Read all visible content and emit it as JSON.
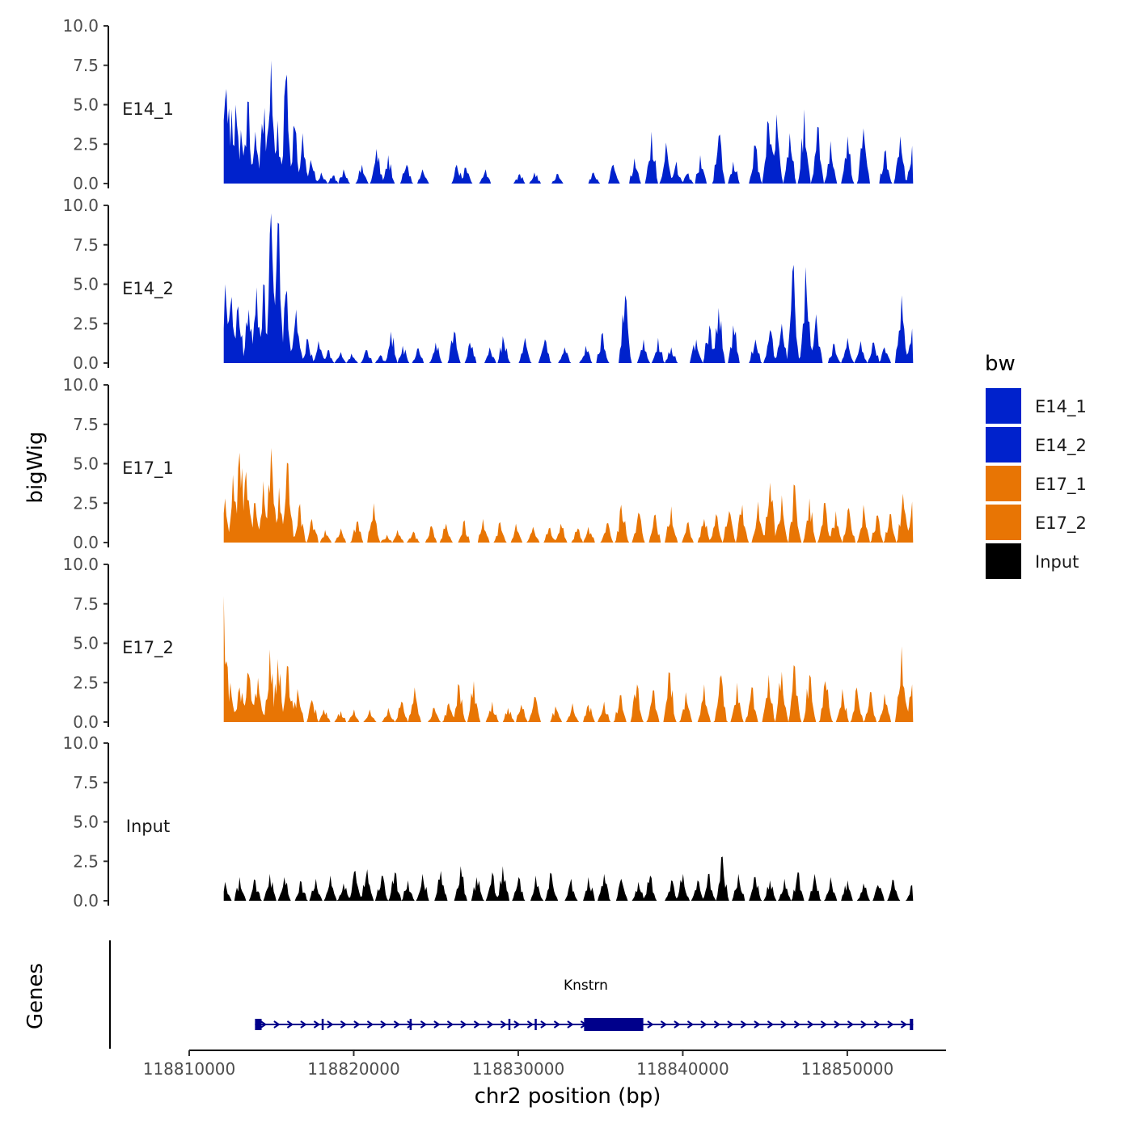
{
  "chart_data": {
    "type": "area",
    "y_axis_title": "bigWig",
    "x_axis_title": "chr2 position (bp)",
    "gene_panel_title": "Genes",
    "ylim": [
      0,
      10
    ],
    "y_ticks": [
      0,
      2.5,
      5,
      7.5,
      10
    ],
    "y_tick_labels": [
      "0.0",
      "2.5",
      "5.0",
      "7.5",
      "10.0"
    ],
    "xlim": [
      118810000,
      118856000
    ],
    "x_ticks": [
      118810000,
      118820000,
      118830000,
      118840000,
      118850000
    ],
    "x_tick_labels": [
      "118810000",
      "118820000",
      "118830000",
      "118840000",
      "118850000"
    ],
    "data_range": [
      118812100,
      118854000
    ],
    "legend": {
      "title": "bw",
      "entries": [
        {
          "label": "E14_1",
          "color": "#0022CC"
        },
        {
          "label": "E14_2",
          "color": "#0022CC"
        },
        {
          "label": "E17_1",
          "color": "#E87504"
        },
        {
          "label": "E17_2",
          "color": "#E87504"
        },
        {
          "label": "Input",
          "color": "#000000"
        }
      ]
    },
    "series": [
      {
        "name": "E14_1",
        "color": "#0022CC",
        "peaks": [
          [
            118812150,
            5.3
          ],
          [
            118812300,
            6.0
          ],
          [
            118812600,
            4.7
          ],
          [
            118812850,
            5.0
          ],
          [
            118813150,
            3.4
          ],
          [
            118813550,
            5.2
          ],
          [
            118814050,
            3.3
          ],
          [
            118814550,
            4.8
          ],
          [
            118814950,
            7.8
          ],
          [
            118815350,
            4.0
          ],
          [
            118815900,
            6.5
          ],
          [
            118816400,
            3.5
          ],
          [
            118816900,
            3.2
          ],
          [
            118817400,
            1.5
          ],
          [
            118818050,
            0.7
          ],
          [
            118818750,
            0.5
          ],
          [
            118819400,
            0.9
          ],
          [
            118820500,
            1.2
          ],
          [
            118821400,
            2.2
          ],
          [
            118822100,
            1.8
          ],
          [
            118823200,
            1.2
          ],
          [
            118824200,
            0.9
          ],
          [
            118826300,
            1.2
          ],
          [
            118826800,
            1.0
          ],
          [
            118828000,
            0.9
          ],
          [
            118830100,
            0.6
          ],
          [
            118831000,
            0.7
          ],
          [
            118832400,
            0.6
          ],
          [
            118834600,
            0.7
          ],
          [
            118835800,
            1.2
          ],
          [
            118837100,
            1.6
          ],
          [
            118838100,
            3.3
          ],
          [
            118839000,
            2.6
          ],
          [
            118839600,
            1.4
          ],
          [
            118840300,
            0.6
          ],
          [
            118841100,
            1.8
          ],
          [
            118842200,
            3.0
          ],
          [
            118843100,
            1.4
          ],
          [
            118844400,
            2.4
          ],
          [
            118845200,
            3.8
          ],
          [
            118845700,
            4.4
          ],
          [
            118846500,
            3.2
          ],
          [
            118847400,
            4.7
          ],
          [
            118848200,
            3.6
          ],
          [
            118849000,
            2.7
          ],
          [
            118850000,
            3.0
          ],
          [
            118851000,
            3.5
          ],
          [
            118852300,
            2.0
          ],
          [
            118853200,
            3.0
          ],
          [
            118853950,
            2.4
          ]
        ]
      },
      {
        "name": "E14_2",
        "color": "#0022CC",
        "peaks": [
          [
            118812200,
            5.0
          ],
          [
            118812600,
            4.2
          ],
          [
            118813000,
            3.6
          ],
          [
            118813600,
            3.4
          ],
          [
            118814100,
            4.8
          ],
          [
            118814500,
            5.0
          ],
          [
            118815000,
            9.5
          ],
          [
            118815400,
            8.9
          ],
          [
            118815900,
            4.3
          ],
          [
            118816500,
            3.4
          ],
          [
            118817200,
            1.5
          ],
          [
            118817900,
            1.4
          ],
          [
            118818450,
            0.8
          ],
          [
            118819200,
            0.7
          ],
          [
            118819900,
            0.6
          ],
          [
            118820800,
            0.8
          ],
          [
            118821600,
            0.5
          ],
          [
            118822300,
            2.0
          ],
          [
            118823000,
            1.1
          ],
          [
            118823900,
            0.9
          ],
          [
            118825000,
            1.3
          ],
          [
            118826100,
            2.0
          ],
          [
            118827100,
            1.3
          ],
          [
            118828300,
            1.0
          ],
          [
            118829100,
            1.7
          ],
          [
            118830400,
            1.6
          ],
          [
            118831600,
            1.5
          ],
          [
            118832800,
            1.0
          ],
          [
            118834100,
            1.1
          ],
          [
            118835100,
            1.8
          ],
          [
            118836500,
            4.3
          ],
          [
            118837600,
            1.5
          ],
          [
            118838500,
            1.6
          ],
          [
            118839300,
            1.0
          ],
          [
            118840800,
            1.5
          ],
          [
            118841600,
            2.4
          ],
          [
            118842200,
            3.5
          ],
          [
            118843100,
            2.4
          ],
          [
            118844400,
            1.5
          ],
          [
            118845300,
            2.1
          ],
          [
            118846000,
            2.5
          ],
          [
            118846700,
            5.8
          ],
          [
            118847500,
            6.1
          ],
          [
            118848100,
            3.1
          ],
          [
            118849200,
            1.2
          ],
          [
            118850000,
            1.6
          ],
          [
            118850800,
            1.4
          ],
          [
            118851600,
            1.3
          ],
          [
            118852300,
            1.0
          ],
          [
            118853300,
            4.3
          ],
          [
            118853950,
            2.2
          ]
        ]
      },
      {
        "name": "E17_1",
        "color": "#E87504",
        "peaks": [
          [
            118812150,
            2.8
          ],
          [
            118812700,
            4.3
          ],
          [
            118813100,
            5.7
          ],
          [
            118813500,
            4.5
          ],
          [
            118814000,
            2.5
          ],
          [
            118814500,
            3.9
          ],
          [
            118815000,
            6.0
          ],
          [
            118815500,
            3.5
          ],
          [
            118816000,
            5.0
          ],
          [
            118816700,
            2.2
          ],
          [
            118817500,
            1.5
          ],
          [
            118818300,
            0.8
          ],
          [
            118819200,
            0.9
          ],
          [
            118820200,
            1.3
          ],
          [
            118821200,
            2.5
          ],
          [
            118822000,
            0.5
          ],
          [
            118822700,
            0.8
          ],
          [
            118823600,
            0.7
          ],
          [
            118824700,
            1.0
          ],
          [
            118825600,
            1.2
          ],
          [
            118826700,
            1.3
          ],
          [
            118827900,
            1.5
          ],
          [
            118828900,
            1.3
          ],
          [
            118829900,
            1.2
          ],
          [
            118830900,
            1.0
          ],
          [
            118831900,
            0.9
          ],
          [
            118832600,
            1.2
          ],
          [
            118833600,
            0.9
          ],
          [
            118834300,
            1.0
          ],
          [
            118835400,
            1.2
          ],
          [
            118836300,
            2.4
          ],
          [
            118837300,
            1.9
          ],
          [
            118838300,
            1.7
          ],
          [
            118839300,
            2.3
          ],
          [
            118840300,
            1.2
          ],
          [
            118841300,
            1.5
          ],
          [
            118842000,
            1.8
          ],
          [
            118842800,
            2.0
          ],
          [
            118843600,
            2.4
          ],
          [
            118844600,
            2.6
          ],
          [
            118845300,
            3.8
          ],
          [
            118846000,
            3.0
          ],
          [
            118846800,
            3.6
          ],
          [
            118847700,
            2.8
          ],
          [
            118848600,
            2.5
          ],
          [
            118849300,
            2.0
          ],
          [
            118850100,
            2.2
          ],
          [
            118851000,
            2.4
          ],
          [
            118851800,
            1.7
          ],
          [
            118852600,
            1.8
          ],
          [
            118853400,
            3.1
          ],
          [
            118853950,
            2.6
          ]
        ]
      },
      {
        "name": "E17_2",
        "color": "#E87504",
        "peaks": [
          [
            118812100,
            8.0
          ],
          [
            118812500,
            2.5
          ],
          [
            118813100,
            2.2
          ],
          [
            118813600,
            3.0
          ],
          [
            118814200,
            2.8
          ],
          [
            118814900,
            4.6
          ],
          [
            118815400,
            4.0
          ],
          [
            118816000,
            3.5
          ],
          [
            118816600,
            2.1
          ],
          [
            118817500,
            1.4
          ],
          [
            118818200,
            0.8
          ],
          [
            118819200,
            0.7
          ],
          [
            118820000,
            0.8
          ],
          [
            118821000,
            0.8
          ],
          [
            118822100,
            0.9
          ],
          [
            118822900,
            1.3
          ],
          [
            118823700,
            2.2
          ],
          [
            118824900,
            0.9
          ],
          [
            118825800,
            1.2
          ],
          [
            118826400,
            2.3
          ],
          [
            118827300,
            2.6
          ],
          [
            118828400,
            1.3
          ],
          [
            118829400,
            0.9
          ],
          [
            118830200,
            1.1
          ],
          [
            118831000,
            1.6
          ],
          [
            118832300,
            1.0
          ],
          [
            118833300,
            1.2
          ],
          [
            118834300,
            1.1
          ],
          [
            118835200,
            1.3
          ],
          [
            118836200,
            1.7
          ],
          [
            118837200,
            2.4
          ],
          [
            118838200,
            2.0
          ],
          [
            118839200,
            3.1
          ],
          [
            118840200,
            1.9
          ],
          [
            118841300,
            2.4
          ],
          [
            118842300,
            2.8
          ],
          [
            118843300,
            2.5
          ],
          [
            118844200,
            2.2
          ],
          [
            118845200,
            3.0
          ],
          [
            118846000,
            3.2
          ],
          [
            118846800,
            3.5
          ],
          [
            118847700,
            3.0
          ],
          [
            118848700,
            2.6
          ],
          [
            118849700,
            2.1
          ],
          [
            118850600,
            2.2
          ],
          [
            118851400,
            1.9
          ],
          [
            118852300,
            1.8
          ],
          [
            118853300,
            4.8
          ],
          [
            118853950,
            2.4
          ]
        ]
      },
      {
        "name": "Input",
        "color": "#000000",
        "peaks": [
          [
            118812200,
            1.2
          ],
          [
            118813100,
            1.5
          ],
          [
            118814000,
            1.3
          ],
          [
            118814900,
            1.7
          ],
          [
            118815800,
            1.5
          ],
          [
            118816800,
            1.2
          ],
          [
            118817700,
            1.4
          ],
          [
            118818600,
            1.6
          ],
          [
            118819400,
            1.1
          ],
          [
            118820100,
            1.9
          ],
          [
            118820800,
            2.0
          ],
          [
            118821700,
            1.6
          ],
          [
            118822500,
            1.8
          ],
          [
            118823300,
            1.3
          ],
          [
            118824200,
            1.7
          ],
          [
            118825300,
            1.9
          ],
          [
            118826500,
            2.2
          ],
          [
            118827500,
            1.5
          ],
          [
            118828400,
            1.8
          ],
          [
            118829100,
            2.2
          ],
          [
            118830000,
            1.5
          ],
          [
            118831100,
            1.6
          ],
          [
            118832000,
            1.7
          ],
          [
            118833200,
            1.4
          ],
          [
            118834300,
            1.5
          ],
          [
            118835200,
            1.7
          ],
          [
            118836300,
            1.4
          ],
          [
            118837300,
            1.2
          ],
          [
            118838000,
            1.6
          ],
          [
            118839300,
            1.3
          ],
          [
            118840000,
            1.7
          ],
          [
            118840900,
            1.3
          ],
          [
            118841600,
            1.7
          ],
          [
            118842400,
            2.8
          ],
          [
            118843400,
            1.7
          ],
          [
            118844400,
            1.5
          ],
          [
            118845300,
            1.3
          ],
          [
            118846200,
            1.4
          ],
          [
            118847000,
            1.8
          ],
          [
            118848000,
            1.7
          ],
          [
            118849000,
            1.5
          ],
          [
            118850000,
            1.3
          ],
          [
            118851000,
            1.1
          ],
          [
            118851900,
            1.0
          ],
          [
            118852800,
            1.3
          ],
          [
            118853950,
            1.0
          ]
        ]
      }
    ],
    "gene": {
      "label": "Knstrn",
      "strand": "+",
      "start": 118814000,
      "end": 118854000,
      "exons": [
        [
          118814000,
          118814400
        ],
        [
          118818050,
          118818130
        ],
        [
          118823400,
          118823520
        ],
        [
          118829400,
          118829480
        ],
        [
          118831000,
          118831080
        ],
        [
          118834000,
          118837600
        ],
        [
          118853800,
          118854000
        ]
      ]
    }
  }
}
